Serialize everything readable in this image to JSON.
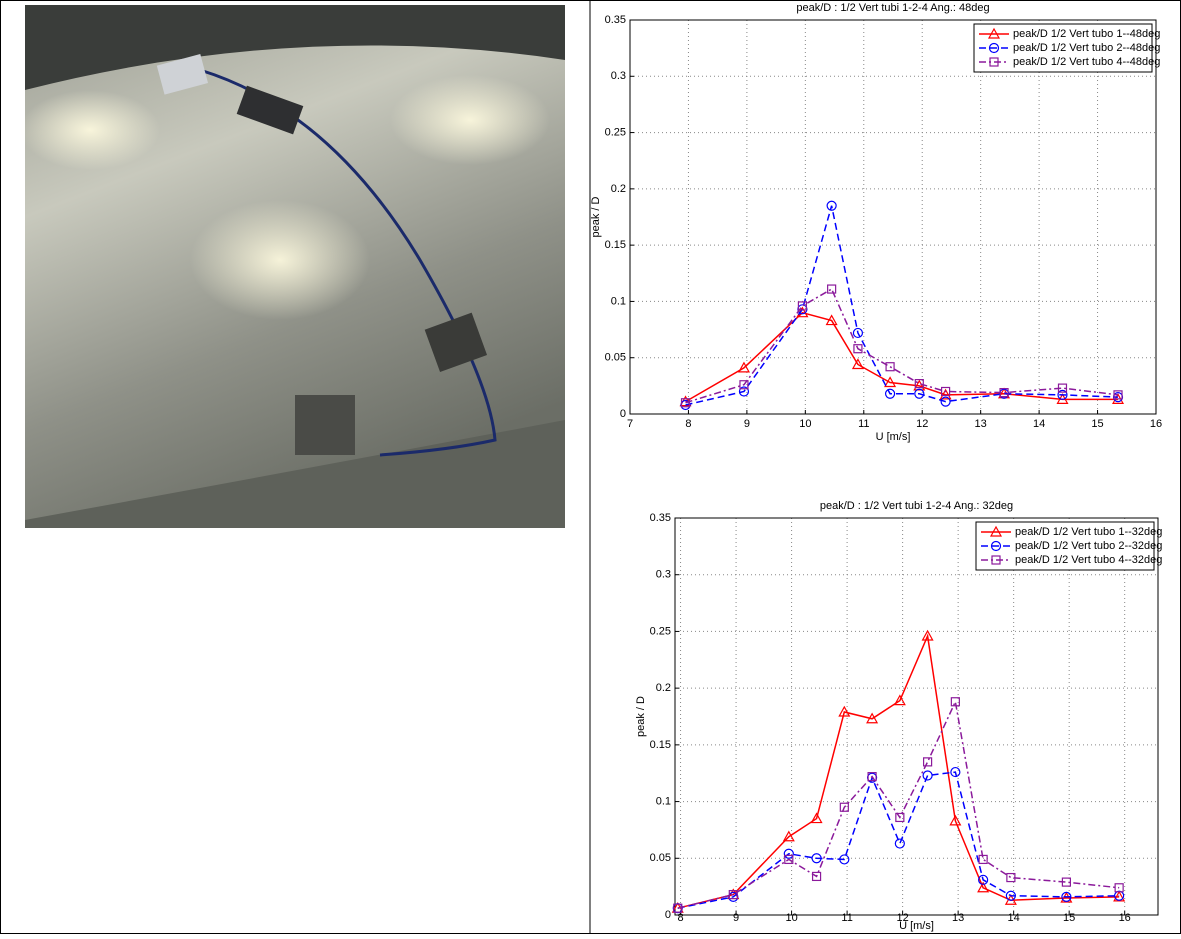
{
  "chart_data": [
    {
      "type": "line",
      "title": "peak/D :  1/2 Vert tubi 1-2-4 Ang.: 48deg",
      "xlabel": "U [m/s]",
      "ylabel": "peak / D",
      "x": [
        7.95,
        8.95,
        9.95,
        10.45,
        10.9,
        11.45,
        11.95,
        12.4,
        13.4,
        14.4,
        15.35
      ],
      "series": [
        {
          "name": "peak/D  1/2 Vert tubo 1--48deg",
          "color": "#ff0000",
          "marker": "triangle",
          "linestyle": "solid",
          "values": [
            0.011,
            0.041,
            0.09,
            0.083,
            0.044,
            0.028,
            0.025,
            0.017,
            0.018,
            0.013,
            0.013
          ]
        },
        {
          "name": "peak/D  1/2 Vert tubo 2--48deg",
          "color": "#0000ff",
          "marker": "circle",
          "linestyle": "dashed",
          "values": [
            0.008,
            0.02,
            0.093,
            0.185,
            0.072,
            0.018,
            0.018,
            0.011,
            0.018,
            0.017,
            0.015
          ]
        },
        {
          "name": "peak/D  1/2 Vert tubo 4--48deg",
          "color": "#8b1a9b",
          "marker": "square",
          "linestyle": "dashdot",
          "values": [
            0.01,
            0.026,
            0.096,
            0.111,
            0.058,
            0.042,
            0.027,
            0.02,
            0.019,
            0.023,
            0.017
          ]
        }
      ],
      "xlim": [
        7,
        16
      ],
      "xticks": [
        7,
        8,
        9,
        10,
        11,
        12,
        13,
        14,
        15,
        16
      ],
      "ylim": [
        0,
        0.35
      ],
      "yticks": [
        0,
        0.05,
        0.1,
        0.15,
        0.2,
        0.25,
        0.3,
        0.35
      ],
      "grid": true,
      "legend": "upper-right"
    },
    {
      "type": "line",
      "title": "peak/D :  1/2 Vert tubi 1-2-4 Ang.: 32deg",
      "xlabel": "U [m/s]",
      "ylabel": "peak / D",
      "x": [
        7.95,
        8.95,
        9.95,
        10.45,
        10.95,
        11.45,
        11.95,
        12.45,
        12.95,
        13.45,
        13.95,
        14.95,
        15.9
      ],
      "series": [
        {
          "name": "peak/D  1/2 Vert tubo 1--32deg",
          "color": "#ff0000",
          "marker": "triangle",
          "linestyle": "solid",
          "values": [
            0.006,
            0.018,
            0.069,
            0.085,
            0.179,
            0.173,
            0.189,
            0.246,
            0.083,
            0.024,
            0.013,
            0.015,
            0.016
          ]
        },
        {
          "name": "peak/D  1/2 Vert tubo 2--32deg",
          "color": "#0000ff",
          "marker": "circle",
          "linestyle": "dashed",
          "values": [
            0.006,
            0.016,
            0.054,
            0.05,
            0.049,
            0.121,
            0.063,
            0.123,
            0.126,
            0.031,
            0.017,
            0.016,
            0.017
          ]
        },
        {
          "name": "peak/D  1/2 Vert tubo 4--32deg",
          "color": "#8b1a9b",
          "marker": "square",
          "linestyle": "dashdot",
          "values": [
            0.006,
            0.018,
            0.049,
            0.034,
            0.095,
            0.122,
            0.086,
            0.135,
            0.188,
            0.049,
            0.033,
            0.029,
            0.024
          ]
        }
      ],
      "xlim": [
        7.9,
        16.6
      ],
      "xticks": [
        8,
        9,
        10,
        11,
        12,
        13,
        14,
        15,
        16
      ],
      "ylim": [
        0,
        0.35
      ],
      "yticks": [
        0,
        0.05,
        0.1,
        0.15,
        0.2,
        0.25,
        0.3,
        0.35
      ],
      "grid": true,
      "legend": "upper-right"
    }
  ]
}
